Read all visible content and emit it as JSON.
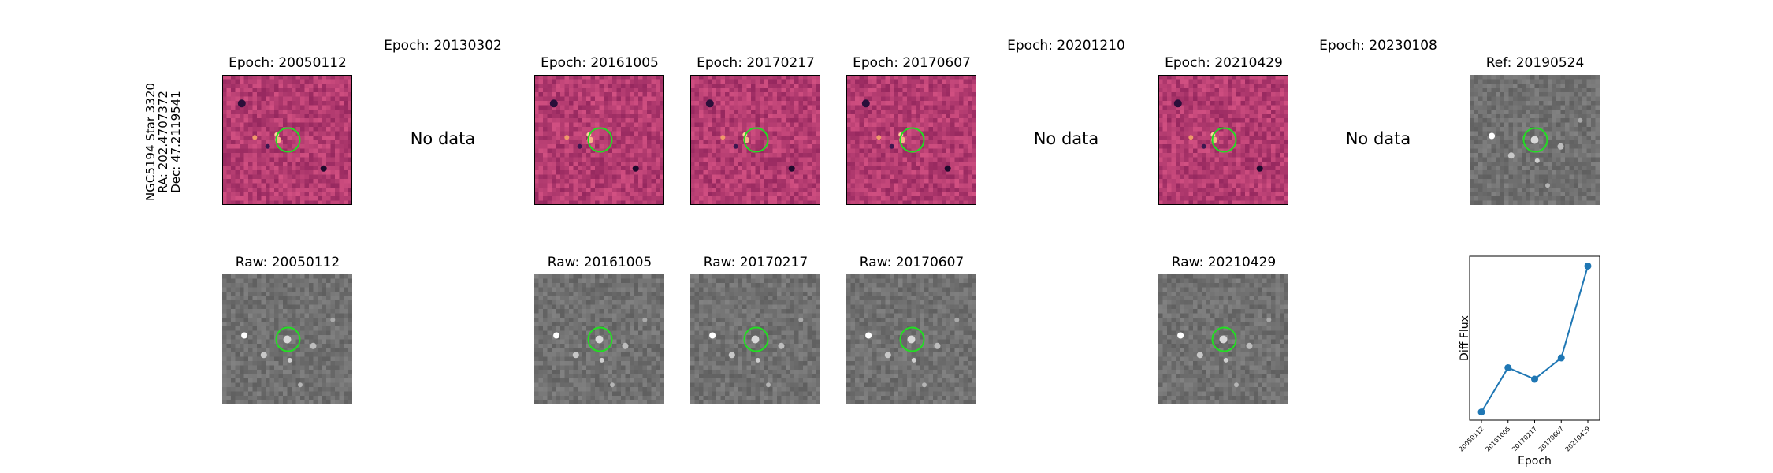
{
  "star": {
    "name": "NGC5194 Star 3320",
    "ra": "RA: 202.4707372",
    "dec": "Dec: 47.2119541"
  },
  "top_row": [
    {
      "title": "Epoch: 20050112",
      "has_data": true
    },
    {
      "title": "Epoch: 20130302",
      "has_data": false,
      "no_data_text": "No data"
    },
    {
      "title": "Epoch: 20161005",
      "has_data": true
    },
    {
      "title": "Epoch: 20170217",
      "has_data": true
    },
    {
      "title": "Epoch: 20170607",
      "has_data": true
    },
    {
      "title": "Epoch: 20201210",
      "has_data": false,
      "no_data_text": "No data"
    },
    {
      "title": "Epoch: 20210429",
      "has_data": true
    },
    {
      "title": "Epoch: 20230108",
      "has_data": false,
      "no_data_text": "No data"
    },
    {
      "title": "Ref: 20190524",
      "has_data": true,
      "kind": "ref"
    }
  ],
  "bottom_row": [
    {
      "title": "Raw: 20050112",
      "has_data": true
    },
    {
      "title": "",
      "has_data": false
    },
    {
      "title": "Raw: 20161005",
      "has_data": true
    },
    {
      "title": "Raw: 20170217",
      "has_data": true
    },
    {
      "title": "Raw: 20170607",
      "has_data": true
    },
    {
      "title": "",
      "has_data": false
    },
    {
      "title": "Raw: 20210429",
      "has_data": true
    },
    {
      "title": "",
      "has_data": false
    }
  ],
  "colors": {
    "diff_bg": "#b83a74",
    "raw_bg": "#747474",
    "circle": "#22dd22",
    "line": "#1f77b4"
  },
  "chart_data": {
    "type": "line",
    "title": "",
    "xlabel": "Epoch",
    "ylabel": "Diff Flux",
    "x": [
      "20050112",
      "20161005",
      "20170217",
      "20170607",
      "20210429"
    ],
    "y": [
      0.05,
      0.32,
      0.25,
      0.38,
      0.94
    ],
    "yticks_shown": false,
    "grid": false
  }
}
